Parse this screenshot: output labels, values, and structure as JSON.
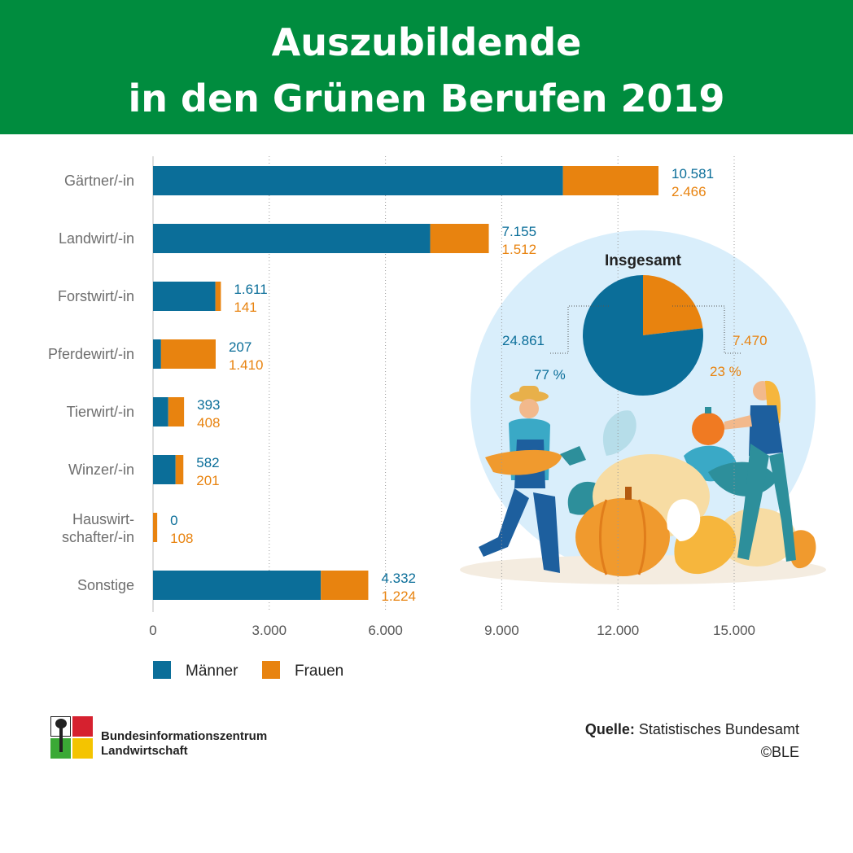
{
  "header": {
    "title_line1": "Auszubildende",
    "title_line2": "in den Grünen Berufen 2019"
  },
  "colors": {
    "header": "#008c3e",
    "maenner": "#0b6e99",
    "frauen": "#e8830f",
    "circle": "#d9eefb"
  },
  "chart_data": [
    {
      "type": "bar",
      "orientation": "horizontal",
      "stacked": true,
      "categories": [
        [
          "Gärtner/-in"
        ],
        [
          "Landwirt/-in"
        ],
        [
          "Forstwirt/-in"
        ],
        [
          "Pferdewirt/-in"
        ],
        [
          "Tierwirt/-in"
        ],
        [
          "Winzer/-in"
        ],
        [
          "Hauswirt-",
          "schafter/-in"
        ],
        [
          "Sonstige"
        ]
      ],
      "series": [
        {
          "name": "Männer",
          "values": [
            10581,
            7155,
            1611,
            207,
            393,
            582,
            0,
            4332
          ],
          "labels": [
            "10.581",
            "7.155",
            "1.611",
            "207",
            "393",
            "582",
            "0",
            "4.332"
          ]
        },
        {
          "name": "Frauen",
          "values": [
            2466,
            1512,
            141,
            1410,
            408,
            201,
            108,
            1224
          ],
          "labels": [
            "2.466",
            "1.512",
            "141",
            "1.410",
            "408",
            "201",
            "108",
            "1.224"
          ]
        }
      ],
      "xlim": [
        0,
        15000
      ],
      "xticks": [
        0,
        3000,
        6000,
        9000,
        12000,
        15000
      ],
      "xtick_labels": [
        "0",
        "3.000",
        "6.000",
        "9.000",
        "12.000",
        "15.000"
      ],
      "grid": "vertical dotted",
      "legend_position": "bottom-left"
    },
    {
      "type": "pie",
      "title": "Insgesamt",
      "slices": [
        {
          "name": "Männer",
          "value": 24861,
          "label": "24.861",
          "percent_label": "77 %"
        },
        {
          "name": "Frauen",
          "value": 7470,
          "label": "7.470",
          "percent_label": "23 %"
        }
      ]
    }
  ],
  "legend": {
    "maenner": "Männer",
    "frauen": "Frauen"
  },
  "footer": {
    "logo_line1": "Bundesinformationszentrum",
    "logo_line2": "Landwirtschaft",
    "source_label": "Quelle:",
    "source_value": " Statistisches Bundesamt",
    "copyright": "©BLE"
  }
}
